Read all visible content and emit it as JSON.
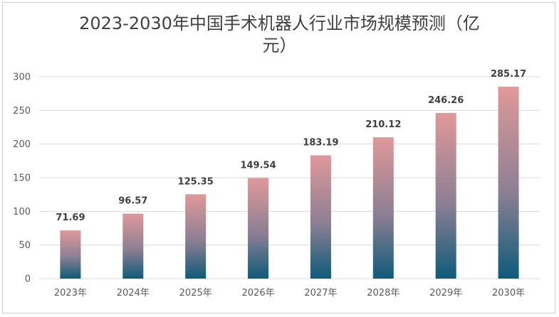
{
  "chart_data": {
    "type": "bar",
    "title": "2023-2030年中国手术机器人行业市场规模预测（亿元）",
    "categories": [
      "2023年",
      "2024年",
      "2025年",
      "2026年",
      "2027年",
      "2028年",
      "2029年",
      "2030年"
    ],
    "values": [
      71.69,
      96.57,
      125.35,
      149.54,
      183.19,
      210.12,
      246.26,
      285.17
    ],
    "data_labels": [
      "71.69",
      "96.57",
      "125.35",
      "149.54",
      "183.19",
      "210.12",
      "246.26",
      "285.17"
    ],
    "yticks": [
      "0",
      "50",
      "100",
      "150",
      "200",
      "250",
      "300"
    ],
    "ylim": [
      0,
      300
    ],
    "xlabel": "",
    "ylabel": "",
    "grid": true,
    "legend": "none",
    "colors": {
      "bar_top": "#e0999a",
      "bar_bottom": "#0d5b7a",
      "grid": "#d9d9d9",
      "text": "#595959"
    }
  }
}
